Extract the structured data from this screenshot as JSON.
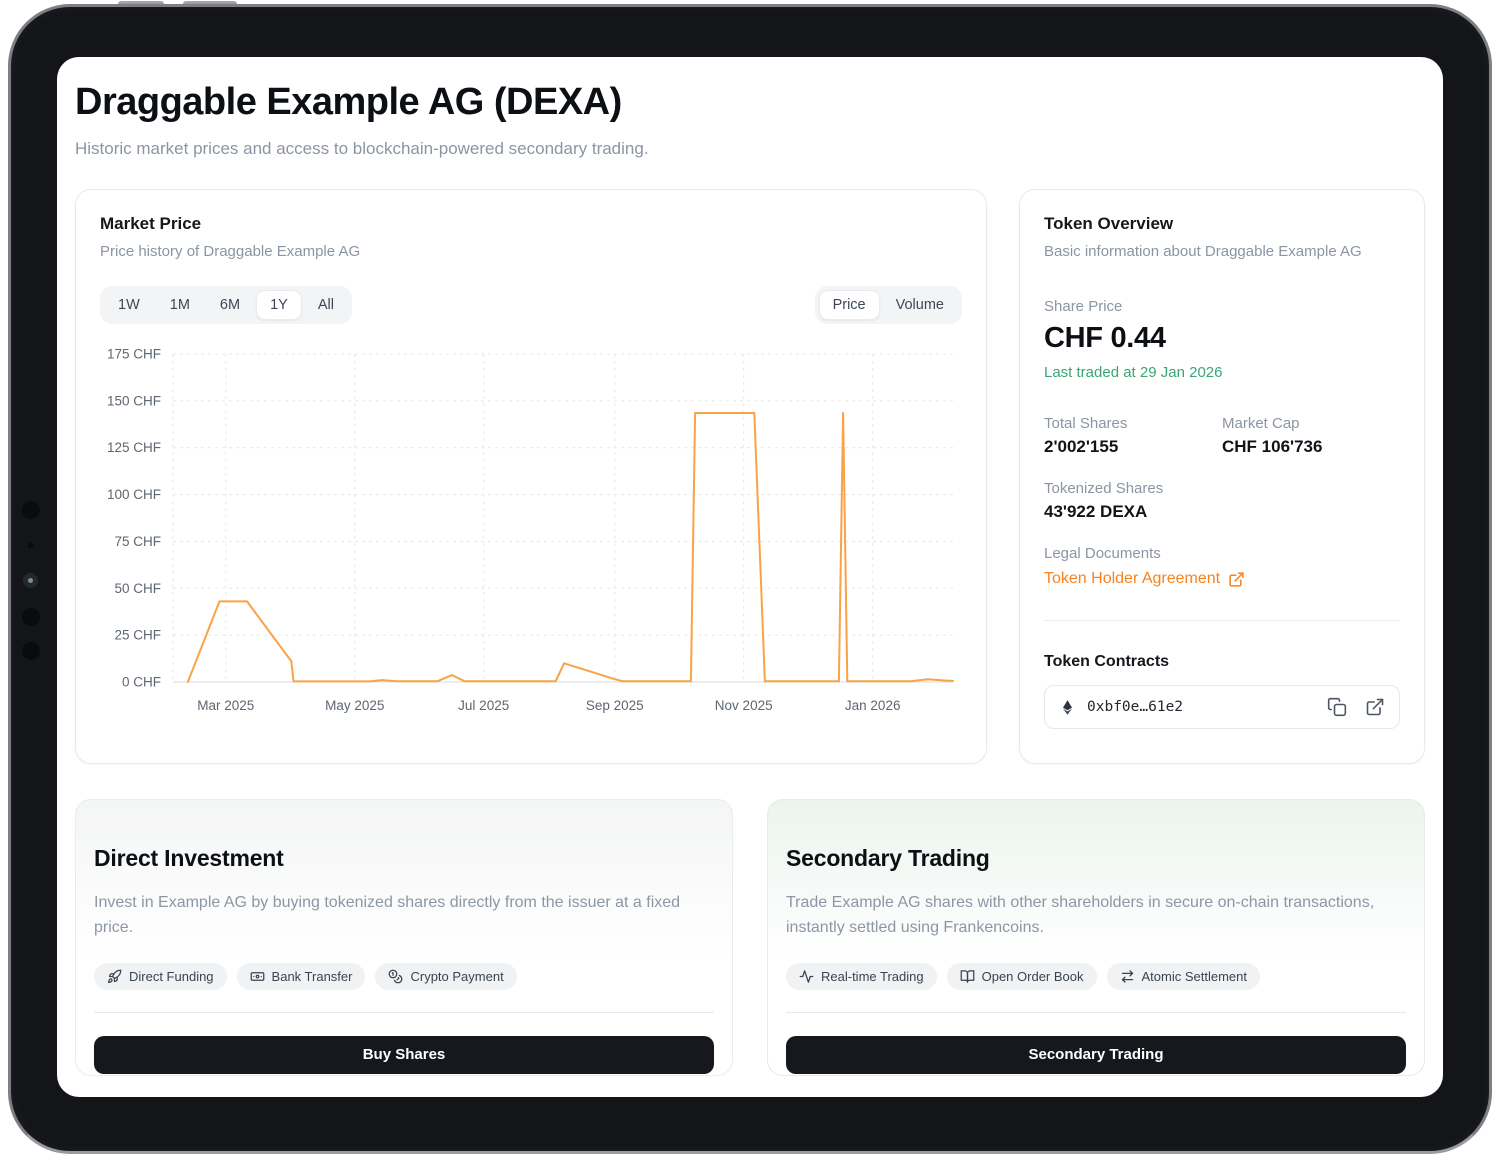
{
  "header": {
    "title": "Draggable Example AG (DEXA)",
    "subtitle": "Historic market prices and access to blockchain-powered secondary trading."
  },
  "market": {
    "title": "Market Price",
    "subtitle": "Price history of Draggable Example AG",
    "ranges": [
      "1W",
      "1M",
      "6M",
      "1Y",
      "All"
    ],
    "active_range": "1Y",
    "modes": [
      "Price",
      "Volume"
    ],
    "active_mode": "Price"
  },
  "chart_data": {
    "type": "line",
    "title": "Price history of Draggable Example AG",
    "xlabel": "",
    "ylabel": "CHF",
    "ylim": [
      0,
      175
    ],
    "y_ticks": [
      175,
      150,
      125,
      100,
      75,
      50,
      25,
      0
    ],
    "y_tick_suffix": " CHF",
    "x_domain": [
      "2025-02-04",
      "2026-02-08"
    ],
    "x_ticks": [
      {
        "label": "Mar 2025",
        "date": "2025-03-01"
      },
      {
        "label": "May 2025",
        "date": "2025-05-01"
      },
      {
        "label": "Jul 2025",
        "date": "2025-07-01"
      },
      {
        "label": "Sep 2025",
        "date": "2025-09-01"
      },
      {
        "label": "Nov 2025",
        "date": "2025-11-01"
      },
      {
        "label": "Jan 2026",
        "date": "2026-01-01"
      }
    ],
    "grid": true,
    "legend": false,
    "line_color": "#F9A246",
    "points": [
      [
        "2025-02-11",
        0
      ],
      [
        "2025-02-26",
        43
      ],
      [
        "2025-03-11",
        43
      ],
      [
        "2025-04-01",
        11
      ],
      [
        "2025-04-02",
        0.3
      ],
      [
        "2025-05-08",
        0.3
      ],
      [
        "2025-05-14",
        1
      ],
      [
        "2025-05-21",
        0.4
      ],
      [
        "2025-06-09",
        0.4
      ],
      [
        "2025-06-16",
        3.7
      ],
      [
        "2025-06-22",
        0.4
      ],
      [
        "2025-08-04",
        0.4
      ],
      [
        "2025-08-08",
        10
      ],
      [
        "2025-09-01",
        1.5
      ],
      [
        "2025-09-05",
        0.4
      ],
      [
        "2025-10-07",
        0.4
      ],
      [
        "2025-10-09",
        143.5
      ],
      [
        "2025-11-06",
        143.5
      ],
      [
        "2025-11-11",
        0.4
      ],
      [
        "2025-12-16",
        0.4
      ],
      [
        "2025-12-18",
        143.5
      ],
      [
        "2025-12-20",
        0.4
      ],
      [
        "2026-01-19",
        0.4
      ],
      [
        "2026-01-27",
        1.5
      ],
      [
        "2026-02-04",
        0.8
      ],
      [
        "2026-02-08",
        0.6
      ]
    ]
  },
  "token": {
    "title": "Token Overview",
    "subtitle": "Basic information about Draggable Example AG",
    "share_price_label": "Share Price",
    "share_price": "CHF 0.44",
    "last_traded": "Last traded at 29 Jan 2026",
    "total_shares_label": "Total Shares",
    "total_shares": "2'002'155",
    "market_cap_label": "Market Cap",
    "market_cap": "CHF 106'736",
    "tokenized_shares_label": "Tokenized Shares",
    "tokenized_shares": "43'922 DEXA",
    "legal_documents_label": "Legal Documents",
    "legal_link": "Token Holder Agreement",
    "contracts_title": "Token Contracts",
    "contract_address": "0xbf0e…61e2"
  },
  "direct_investment": {
    "title": "Direct Investment",
    "description": "Invest in Example AG by buying tokenized shares directly from the issuer at a fixed price.",
    "badges": [
      {
        "icon": "rocket",
        "label": "Direct Funding"
      },
      {
        "icon": "banknote",
        "label": "Bank Transfer"
      },
      {
        "icon": "coins",
        "label": "Crypto Payment"
      }
    ],
    "button": "Buy Shares"
  },
  "secondary_trading": {
    "title": "Secondary Trading",
    "description": "Trade Example AG shares with other shareholders in secure on-chain transactions, instantly settled using Frankencoins.",
    "badges": [
      {
        "icon": "activity",
        "label": "Real-time Trading"
      },
      {
        "icon": "book-open",
        "label": "Open Order Book"
      },
      {
        "icon": "arrows-right-left",
        "label": "Atomic Settlement"
      }
    ],
    "button": "Secondary Trading"
  },
  "colors": {
    "accent_orange": "#F9821F",
    "chart_line": "#F9A246",
    "positive_green": "#3BA577",
    "button_dark": "#16181D"
  }
}
